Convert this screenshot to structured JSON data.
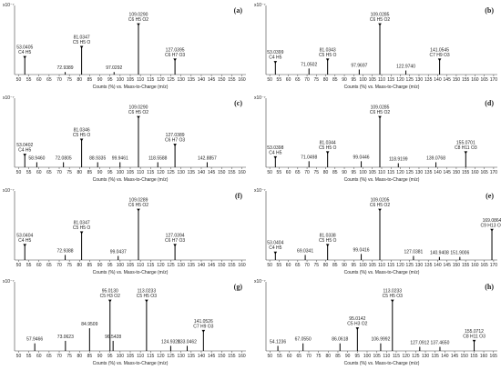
{
  "chart_data": [
    {
      "type": "bar",
      "panel": "(a)",
      "multiplier": "x10⁻⁷",
      "xlabel": "Counts (%) vs. Mass-to-Charge (m/z)",
      "xlim": [
        48,
        162
      ],
      "ylim": [
        0,
        1.3
      ],
      "xticks": [
        50,
        55,
        60,
        65,
        70,
        75,
        80,
        85,
        90,
        95,
        100,
        105,
        110,
        115,
        120,
        125,
        130,
        135,
        140,
        145,
        150,
        155,
        160
      ],
      "x": [
        53.0405,
        72.9389,
        81.0347,
        97.0292,
        109.029,
        127.0395
      ],
      "x_labels": [
        "53.0405",
        "72.9389",
        "81.0347",
        "97.0292",
        "109.0290",
        "127.0395"
      ],
      "formulas": [
        "C4 H5",
        null,
        "C5 H5 O",
        null,
        "C6 H5 O2",
        "C6 H7 O3"
      ],
      "values": [
        0.35,
        0.05,
        0.55,
        0.05,
        1.0,
        0.3
      ],
      "color": "#000000"
    },
    {
      "type": "bar",
      "panel": "(b)",
      "multiplier": "x10⁻⁷",
      "xlabel": "Counts (%) vs. Mass-to-Charge (m/z)",
      "xlim": [
        48,
        172
      ],
      "ylim": [
        0,
        1.3
      ],
      "xticks": [
        50,
        55,
        60,
        65,
        70,
        75,
        80,
        85,
        90,
        95,
        100,
        105,
        110,
        115,
        120,
        125,
        130,
        135,
        140,
        145,
        150,
        155,
        160,
        165,
        170
      ],
      "x": [
        53.0399,
        71.0502,
        81.0343,
        97.9697,
        109.0285,
        122.974,
        141.0545
      ],
      "x_labels": [
        "53.0399",
        "71.0502",
        "81.0343",
        "97.9697",
        "109.0285",
        "122.9740",
        "141.0545"
      ],
      "formulas": [
        "C4 H5",
        null,
        "C5 H5 O",
        null,
        "C6 H5 O2",
        null,
        "C7 H9 O3"
      ],
      "values": [
        0.25,
        0.12,
        0.3,
        0.1,
        1.0,
        0.08,
        0.3
      ],
      "color": "#000000"
    },
    {
      "type": "bar",
      "panel": "(c)",
      "multiplier": "x10⁻⁷",
      "xlabel": "Counts (%) vs. Mass-to-Charge (m/z)",
      "xlim": [
        48,
        162
      ],
      "ylim": [
        0,
        1.3
      ],
      "xticks": [
        50,
        55,
        60,
        65,
        70,
        75,
        80,
        85,
        90,
        95,
        100,
        105,
        110,
        115,
        120,
        125,
        130,
        135,
        140,
        145,
        150,
        155,
        160
      ],
      "x": [
        53.0402,
        58.946,
        72.0805,
        81.0346,
        88.9335,
        99.9461,
        109.029,
        118.5588,
        127.0389,
        142.8857
      ],
      "x_labels": [
        "53.0402",
        "58.9460",
        "72.0805",
        "81.0346",
        "88.9335",
        "99.9461",
        "109.0290",
        "118.5588",
        "127.0389",
        "142.8857"
      ],
      "formulas": [
        "C4 H5",
        null,
        null,
        "C5 H5 O",
        null,
        null,
        "C6 H5 O2",
        null,
        "C6 H7 O3",
        null
      ],
      "values": [
        0.25,
        0.1,
        0.1,
        0.55,
        0.1,
        0.1,
        1.0,
        0.1,
        0.45,
        0.1
      ],
      "color": "#000000"
    },
    {
      "type": "bar",
      "panel": "(d)",
      "multiplier": "x10⁻⁷",
      "xlabel": "Counts (%) vs. Mass-to-Charge (m/z)",
      "xlim": [
        48,
        172
      ],
      "ylim": [
        0,
        1.3
      ],
      "xticks": [
        50,
        55,
        60,
        65,
        70,
        75,
        80,
        85,
        90,
        95,
        100,
        105,
        110,
        115,
        120,
        125,
        130,
        135,
        140,
        145,
        150,
        155,
        160,
        165,
        170
      ],
      "x": [
        53.0398,
        71.0498,
        81.0344,
        99.0446,
        109.0285,
        118.9199,
        139.0768,
        155.0701
      ],
      "x_labels": [
        "53.0398",
        "71.0498",
        "81.0344",
        "99.0446",
        "109.0285",
        "118.9199",
        "139.0768",
        "155.0701"
      ],
      "formulas": [
        "C4 H5",
        null,
        "C5 H5 O",
        null,
        "C6 H5 O2",
        null,
        null,
        "C8 H11 O3"
      ],
      "values": [
        0.2,
        0.12,
        0.3,
        0.12,
        1.0,
        0.08,
        0.1,
        0.3
      ],
      "color": "#000000"
    },
    {
      "type": "bar",
      "panel": "(f)",
      "multiplier": "x10⁻⁷",
      "xlabel": "Counts (%) vs. Mass-to-Charge (m/z)",
      "xlim": [
        48,
        162
      ],
      "ylim": [
        0,
        1.3
      ],
      "xticks": [
        50,
        55,
        60,
        65,
        70,
        75,
        80,
        85,
        90,
        95,
        100,
        105,
        110,
        115,
        120,
        125,
        130,
        135,
        140,
        145,
        150,
        155,
        160
      ],
      "x": [
        53.0404,
        72.9388,
        81.0347,
        99.0437,
        109.0289,
        127.0394
      ],
      "x_labels": [
        "53.0404",
        "72.9388",
        "81.0347",
        "99.0437",
        "109.0289",
        "127.0394"
      ],
      "formulas": [
        "C4 H5",
        null,
        "C5 H5 O",
        null,
        "C6 H5 O2",
        "C6 H7 O3"
      ],
      "values": [
        0.3,
        0.1,
        0.55,
        0.08,
        1.0,
        0.3
      ],
      "color": "#000000"
    },
    {
      "type": "bar",
      "panel": "(e)",
      "multiplier": "x10⁻⁷",
      "xlabel": "Counts (%) vs. Mass-to-Charge (m/z)",
      "xlim": [
        48,
        172
      ],
      "ylim": [
        0,
        1.3
      ],
      "xticks": [
        50,
        55,
        60,
        65,
        70,
        75,
        80,
        85,
        90,
        95,
        100,
        105,
        110,
        115,
        120,
        125,
        130,
        135,
        140,
        145,
        150,
        155,
        160,
        165,
        170
      ],
      "x": [
        53.0404,
        69.0341,
        81.0338,
        99.0416,
        109.0205,
        127.0381,
        140.9408,
        151.9006,
        169.0864
      ],
      "x_labels": [
        "53.0404",
        "69.0341",
        "81.0338",
        "99.0416",
        "109.0205",
        "127.0381",
        "140.9408",
        "151.9006",
        "169.0864"
      ],
      "formulas": [
        "C4 H5",
        null,
        "C5 H5 O",
        null,
        "C6 H5 O2",
        null,
        null,
        null,
        "C9 H13 O3"
      ],
      "values": [
        0.15,
        0.1,
        0.3,
        0.12,
        1.0,
        0.08,
        0.06,
        0.06,
        0.6
      ],
      "color": "#000000"
    },
    {
      "type": "bar",
      "panel": "(g)",
      "multiplier": "x10⁻⁷",
      "xlabel": "Counts (%) vs. Mass-to-Charge (m/z)",
      "xlim": [
        48,
        162
      ],
      "ylim": [
        0,
        1.3
      ],
      "xticks": [
        50,
        55,
        60,
        65,
        70,
        75,
        80,
        85,
        90,
        95,
        100,
        105,
        110,
        115,
        120,
        125,
        130,
        135,
        140,
        145,
        150,
        155,
        160
      ],
      "x": [
        57.9466,
        73.0623,
        84.9509,
        95.013,
        96.5428,
        113.0233,
        124.9328,
        133.0462,
        141.0526
      ],
      "x_labels": [
        "57.9466",
        "73.0623",
        "84.9509",
        "95.0130",
        "96.5428",
        "113.0233",
        "124.9328",
        "133.0462",
        "141.0526"
      ],
      "formulas": [
        null,
        null,
        null,
        "C5 H3 O2",
        null,
        "C5 H5 O3",
        null,
        null,
        "C7 H9 O3"
      ],
      "values": [
        0.15,
        0.2,
        0.45,
        1.0,
        0.2,
        1.0,
        0.1,
        0.1,
        0.4
      ],
      "color": "#000000"
    },
    {
      "type": "bar",
      "panel": "(h)",
      "multiplier": "x10⁻⁷",
      "xlabel": "Counts (%) vs. Mass-to-Charge (m/z)",
      "xlim": [
        48,
        167
      ],
      "ylim": [
        0,
        1.3
      ],
      "xticks": [
        50,
        55,
        60,
        65,
        70,
        75,
        80,
        85,
        90,
        95,
        100,
        105,
        110,
        115,
        120,
        125,
        130,
        135,
        140,
        145,
        150,
        155,
        160,
        165
      ],
      "x": [
        54.1236,
        67.055,
        86.0618,
        95.0142,
        106.9992,
        113.0233,
        127.0912,
        137.465,
        155.0712
      ],
      "x_labels": [
        "54.1236",
        "67.0550",
        "86.0618",
        "95.0142",
        "106.9992",
        "113.0233",
        "127.0912",
        "137.4650",
        "155.0712"
      ],
      "formulas": [
        null,
        null,
        null,
        "C5 H3 O2",
        null,
        "C5 H5 O3",
        null,
        null,
        "C8 H11 O3"
      ],
      "values": [
        0.1,
        0.15,
        0.15,
        0.45,
        0.15,
        1.0,
        0.08,
        0.08,
        0.2
      ],
      "color": "#000000"
    }
  ]
}
